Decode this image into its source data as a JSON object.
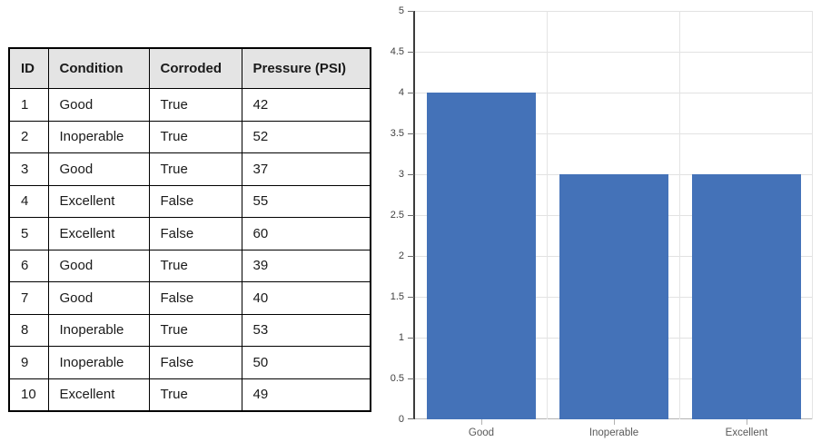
{
  "table": {
    "headers": [
      "ID",
      "Condition",
      "Corroded",
      "Pressure (PSI)"
    ],
    "rows": [
      [
        "1",
        "Good",
        "True",
        "42"
      ],
      [
        "2",
        "Inoperable",
        "True",
        "52"
      ],
      [
        "3",
        "Good",
        "True",
        "37"
      ],
      [
        "4",
        "Excellent",
        "False",
        "55"
      ],
      [
        "5",
        "Excellent",
        "False",
        "60"
      ],
      [
        "6",
        "Good",
        "True",
        "39"
      ],
      [
        "7",
        "Good",
        "False",
        "40"
      ],
      [
        "8",
        "Inoperable",
        "True",
        "53"
      ],
      [
        "9",
        "Inoperable",
        "False",
        "50"
      ],
      [
        "10",
        "Excellent",
        "True",
        "49"
      ]
    ],
    "header_bg": "#e4e4e4",
    "border_color": "#000000"
  },
  "chart_data": {
    "type": "bar",
    "categories": [
      "Good",
      "Inoperable",
      "Excellent"
    ],
    "values": [
      4,
      3,
      3
    ],
    "title": "",
    "xlabel": "",
    "ylabel": "",
    "ylim": [
      0,
      5
    ],
    "ytick_step": 0.5,
    "ytick_labels": [
      "0",
      "0.5",
      "1",
      "1.5",
      "2",
      "2.5",
      "3",
      "3.5",
      "4",
      "4.5",
      "5"
    ],
    "bar_color": "#4472b8",
    "gridline_color": "#e2e2e2",
    "axis_color": "#3c3c3c",
    "grid": true,
    "legend_position": "none"
  }
}
